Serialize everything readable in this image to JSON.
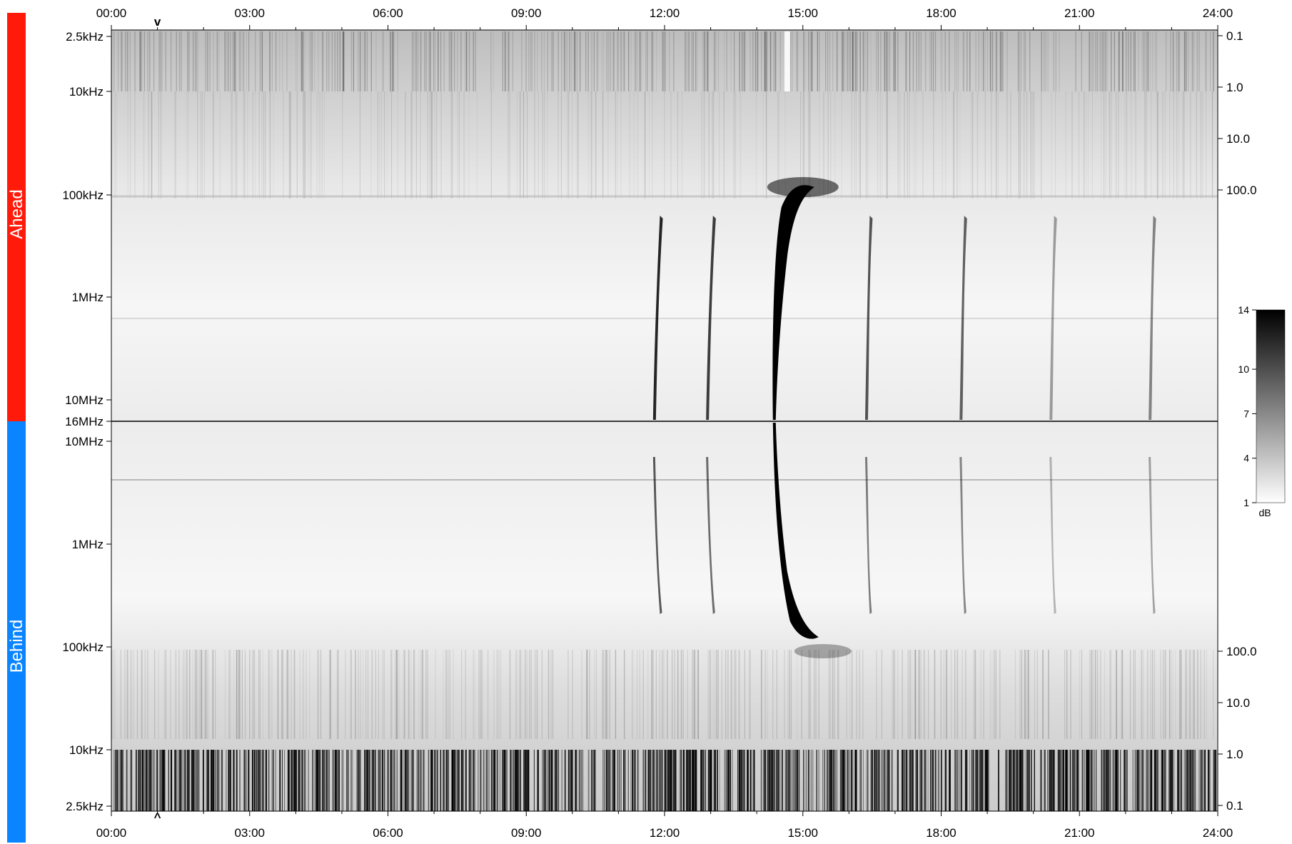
{
  "chart_data": {
    "type": "heatmap",
    "title": "",
    "time_ticks": [
      "00:00",
      "03:00",
      "06:00",
      "09:00",
      "12:00",
      "15:00",
      "18:00",
      "21:00",
      "24:00"
    ],
    "time_range_hours": [
      0,
      24
    ],
    "panels": [
      {
        "name": "Ahead",
        "color": "#ff1a0a",
        "freq_ticks": [
          "2.5kHz",
          "10kHz",
          "100kHz",
          "1MHz",
          "10MHz",
          "16MHz"
        ],
        "right_ticks": [
          "0.1",
          "1.0",
          "10.0",
          "100.0"
        ],
        "orientation": "low-frequency-top"
      },
      {
        "name": "Behind",
        "color": "#0a84ff",
        "freq_ticks": [
          "10MHz",
          "1MHz",
          "100kHz",
          "10kHz",
          "2.5kHz"
        ],
        "right_ticks": [
          "100.0",
          "10.0",
          "1.0",
          "0.1"
        ],
        "orientation": "low-frequency-bottom"
      }
    ],
    "colorbar": {
      "unit": "dB",
      "ticks": [
        14,
        10,
        7,
        4,
        1
      ],
      "range": [
        1,
        14
      ],
      "colors": [
        "#ffffff",
        "#000000"
      ]
    },
    "markers": [
      {
        "time_hours": 1.0,
        "panel": "top",
        "symbol": "v"
      },
      {
        "time_hours": 1.0,
        "panel": "bottom",
        "symbol": "^"
      }
    ],
    "bursts": [
      {
        "start_hours": 11.75,
        "end_hours": 11.9,
        "intensity": 0.85
      },
      {
        "start_hours": 12.9,
        "end_hours": 13.05,
        "intensity": 0.75
      },
      {
        "start_hours": 14.35,
        "end_hours": 15.2,
        "intensity": 1.0
      },
      {
        "start_hours": 16.35,
        "end_hours": 16.45,
        "intensity": 0.65
      },
      {
        "start_hours": 18.4,
        "end_hours": 18.5,
        "intensity": 0.6
      },
      {
        "start_hours": 20.35,
        "end_hours": 20.45,
        "intensity": 0.35
      },
      {
        "start_hours": 22.5,
        "end_hours": 22.6,
        "intensity": 0.45
      }
    ]
  }
}
